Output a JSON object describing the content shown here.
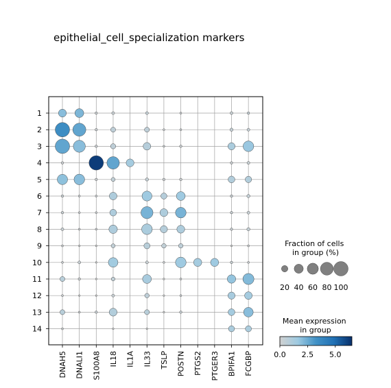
{
  "chart_data": {
    "type": "dotplot",
    "title": "epithelial_cell_specialization markers",
    "genes": [
      "DNAH5",
      "DNALI1",
      "S100A8",
      "IL18",
      "IL1A",
      "IL33",
      "TSLP",
      "POSTN",
      "PTGS2",
      "PTGER3",
      "BPIFA1",
      "FCGBP"
    ],
    "groups": [
      "1",
      "2",
      "3",
      "4",
      "5",
      "6",
      "7",
      "8",
      "9",
      "10",
      "11",
      "12",
      "13",
      "14"
    ],
    "fraction_pct": [
      [
        30,
        38,
        3,
        4,
        0,
        4,
        0,
        2,
        0,
        0,
        4,
        3
      ],
      [
        100,
        82,
        3,
        12,
        0,
        12,
        2,
        2,
        0,
        0,
        5,
        4
      ],
      [
        100,
        70,
        3,
        13,
        0,
        28,
        2,
        3,
        0,
        0,
        25,
        55
      ],
      [
        3,
        0,
        100,
        75,
        30,
        0,
        0,
        0,
        0,
        0,
        3,
        4
      ],
      [
        52,
        55,
        3,
        8,
        0,
        5,
        3,
        3,
        0,
        0,
        22,
        20
      ],
      [
        3,
        2,
        2,
        28,
        0,
        48,
        18,
        38,
        0,
        0,
        3,
        5
      ],
      [
        3,
        2,
        2,
        22,
        0,
        70,
        30,
        55,
        0,
        0,
        3,
        4
      ],
      [
        4,
        2,
        2,
        35,
        0,
        55,
        25,
        30,
        0,
        0,
        3,
        5
      ],
      [
        2,
        1,
        1,
        8,
        0,
        18,
        10,
        10,
        0,
        0,
        1,
        2
      ],
      [
        2,
        4,
        1,
        45,
        0,
        4,
        2,
        55,
        32,
        32,
        3,
        2
      ],
      [
        12,
        3,
        1,
        7,
        0,
        38,
        1,
        2,
        0,
        0,
        35,
        60
      ],
      [
        2,
        1,
        1,
        4,
        0,
        10,
        1,
        2,
        0,
        0,
        25,
        28
      ],
      [
        12,
        2,
        3,
        30,
        0,
        12,
        1,
        3,
        0,
        0,
        22,
        45
      ],
      [
        2,
        0,
        0,
        1,
        0,
        1,
        0,
        0,
        0,
        0,
        18,
        18
      ]
    ],
    "mean_expression": [
      [
        2.0,
        2.2,
        0.2,
        0.3,
        0,
        0.4,
        0,
        0.2,
        0,
        0,
        0.3,
        0.4
      ],
      [
        3.5,
        2.7,
        0.2,
        0.6,
        0,
        0.6,
        0.2,
        0.2,
        0,
        0,
        0.4,
        0.4
      ],
      [
        2.7,
        2.0,
        0.2,
        0.6,
        0,
        0.9,
        0.2,
        0.2,
        0,
        0,
        1.2,
        1.7
      ],
      [
        0.2,
        0,
        6.2,
        2.7,
        1.4,
        0,
        0,
        0,
        0,
        0,
        0.2,
        0.3
      ],
      [
        1.9,
        2.0,
        0.2,
        0.5,
        0,
        0.4,
        0.2,
        0.2,
        0,
        0,
        1.0,
        1.0
      ],
      [
        0.3,
        0.2,
        0.2,
        1.1,
        0,
        1.6,
        0.9,
        1.6,
        0,
        0,
        0.3,
        0.4
      ],
      [
        0.3,
        0.2,
        0.2,
        1.1,
        0,
        2.3,
        1.1,
        2.3,
        0,
        0,
        0.3,
        0.3
      ],
      [
        0.3,
        0.2,
        0.2,
        1.1,
        0,
        1.2,
        0.9,
        1.1,
        0,
        0,
        0.3,
        0.4
      ],
      [
        0.2,
        0.1,
        0.1,
        0.5,
        0,
        0.8,
        0.5,
        0.6,
        0,
        0,
        0.1,
        0.2
      ],
      [
        0.2,
        0.3,
        0.1,
        1.5,
        0,
        0.3,
        0.2,
        1.6,
        1.4,
        1.6,
        0.3,
        0.2
      ],
      [
        0.8,
        0.2,
        0.1,
        0.5,
        0,
        1.3,
        0.1,
        0.2,
        0,
        0,
        1.8,
        2.1
      ],
      [
        0.2,
        0.1,
        0.1,
        0.3,
        0,
        0.6,
        0.1,
        0.2,
        0,
        0,
        1.3,
        1.4
      ],
      [
        0.8,
        0.2,
        0.3,
        1.0,
        0,
        0.8,
        0.1,
        0.3,
        0,
        0,
        1.4,
        2.0
      ],
      [
        0.2,
        0,
        0,
        0.1,
        0,
        0.1,
        0,
        0,
        0,
        0,
        1.2,
        1.2
      ]
    ],
    "size_legend": {
      "title": "Fraction of cells\nin group (%)",
      "values": [
        20,
        40,
        60,
        80,
        100
      ],
      "labels": [
        "20",
        "40",
        "60",
        "80",
        "100"
      ]
    },
    "color_legend": {
      "title": "Mean expression\nin group",
      "vmin": 0,
      "vmax": 6.5,
      "ticks": [
        0.0,
        2.5,
        5.0
      ],
      "tick_labels": [
        "0.0",
        "2.5",
        "5.0"
      ],
      "colormap": [
        "#d1d1d1",
        "#9ecae1",
        "#4292c6",
        "#2171b5",
        "#08306b"
      ]
    },
    "grid": true,
    "dot_edge_color": "#4a4a4a",
    "grid_color": "#a0a0a0"
  }
}
